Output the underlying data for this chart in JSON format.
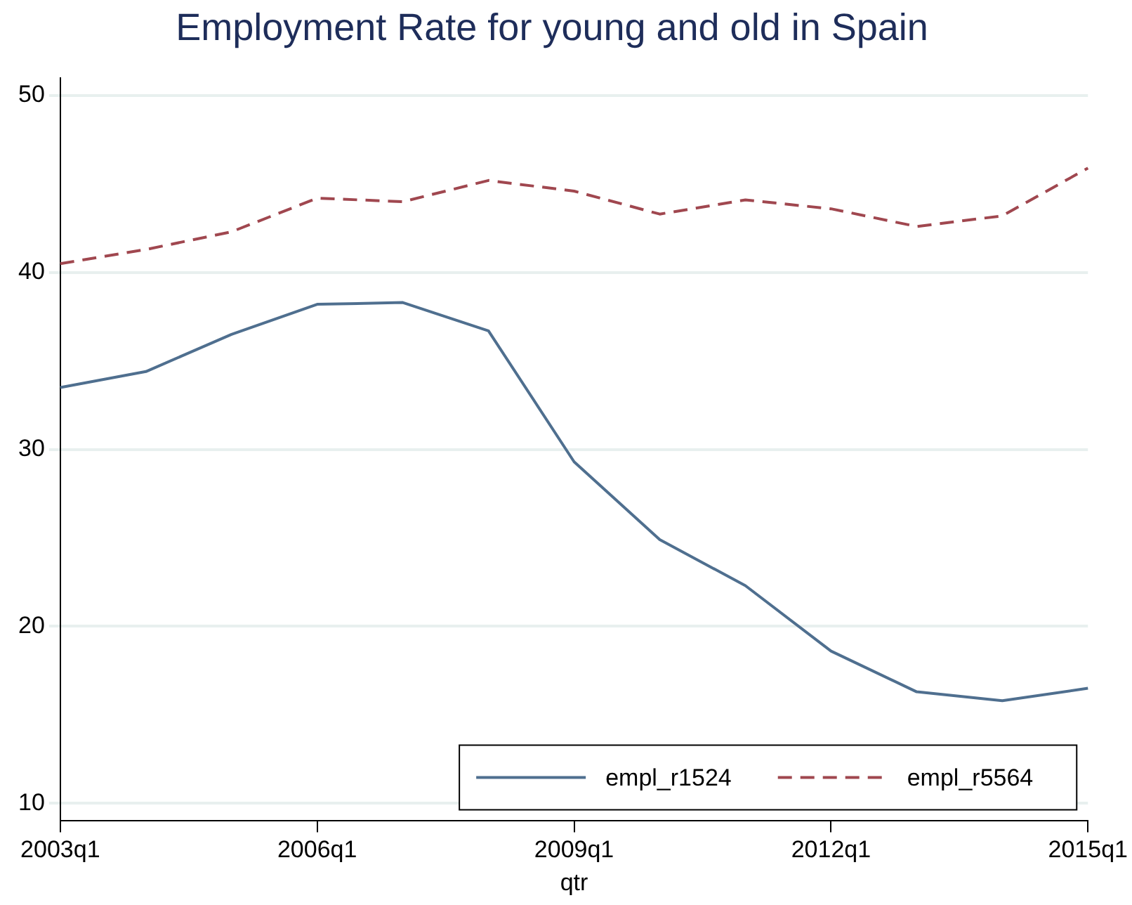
{
  "chart_data": {
    "type": "line",
    "title": "Employment Rate for young and old in Spain",
    "xlabel": "qtr",
    "categories": [
      "2003q1",
      null,
      null,
      "2006q1",
      null,
      null,
      "2009q1",
      null,
      null,
      "2012q1",
      null,
      null,
      "2015q1"
    ],
    "series": [
      {
        "name": "empl_r1524",
        "color": "#4f6f8f",
        "line_style": "solid",
        "values": [
          33.5,
          34.4,
          36.5,
          38.2,
          38.3,
          36.7,
          29.3,
          24.9,
          22.3,
          18.6,
          16.3,
          15.8,
          16.5
        ]
      },
      {
        "name": "empl_r5564",
        "color": "#a0474f",
        "line_style": "dashed",
        "values": [
          40.5,
          41.3,
          42.3,
          44.2,
          44.0,
          45.2,
          44.6,
          43.3,
          44.1,
          43.6,
          42.6,
          43.2,
          45.9
        ]
      }
    ],
    "ylim": [
      9,
      51
    ],
    "yticks": [
      10,
      20,
      30,
      40,
      50
    ],
    "grid": "y",
    "legend": "bottom right",
    "marker": "none"
  }
}
